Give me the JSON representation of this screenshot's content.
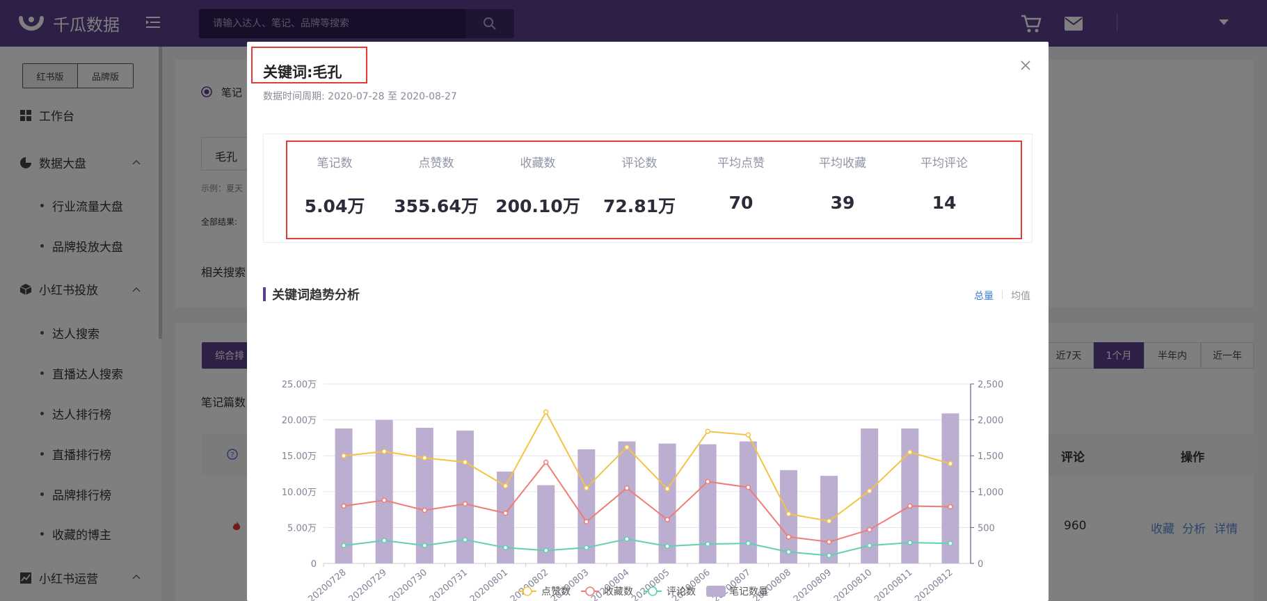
{
  "app": {
    "name": "千瓜数据",
    "search_placeholder": "请输入达人、笔记、品牌等搜索"
  },
  "sidebar": {
    "versions": [
      "红书版",
      "品牌版"
    ],
    "items": [
      {
        "label": "工作台"
      },
      {
        "label": "数据大盘"
      },
      {
        "label": "行业流量大盘"
      },
      {
        "label": "品牌投放大盘"
      },
      {
        "label": "小红书投放"
      },
      {
        "label": "达人搜索"
      },
      {
        "label": "直播达人搜索"
      },
      {
        "label": "达人排行榜"
      },
      {
        "label": "直播排行榜"
      },
      {
        "label": "品牌排行榜"
      },
      {
        "label": "收藏的博主"
      },
      {
        "label": "小红书运营"
      }
    ]
  },
  "background": {
    "radio_label": "笔记",
    "keyword": "毛孔",
    "example": "示例：夏天",
    "all_results": "全部结果:",
    "related": "相关搜索",
    "sort_btn": "综合排",
    "note_count": "笔记篇数",
    "ranges": [
      "近7天",
      "1个月",
      "半年内",
      "近一年"
    ],
    "col_comment": "评论",
    "col_action": "操作",
    "row_comment": "960",
    "actions": [
      "收藏",
      "分析",
      "详情"
    ]
  },
  "modal": {
    "title": "关键词:毛孔",
    "period": "数据时间周期: 2020-07-28 至 2020-08-27",
    "stats": [
      {
        "label": "笔记数",
        "value": "5.04万"
      },
      {
        "label": "点赞数",
        "value": "355.64万"
      },
      {
        "label": "收藏数",
        "value": "200.10万"
      },
      {
        "label": "评论数",
        "value": "72.81万"
      },
      {
        "label": "平均点赞",
        "value": "70"
      },
      {
        "label": "平均收藏",
        "value": "39"
      },
      {
        "label": "平均评论",
        "value": "14"
      }
    ],
    "section_title": "关键词趋势分析",
    "toggle_total": "总量",
    "toggle_avg": "均值"
  },
  "chart_data": {
    "type": "bar",
    "categories": [
      "20200728",
      "20200729",
      "20200730",
      "20200731",
      "20200801",
      "20200802",
      "20200803",
      "20200804",
      "20200805",
      "20200806",
      "20200807",
      "20200808",
      "20200809",
      "20200810",
      "20200811",
      "20200812"
    ],
    "left_axis": {
      "ticks": [
        "0",
        "5.00万",
        "10.00万",
        "15.00万",
        "20.00万",
        "25.00万"
      ],
      "max": 250000
    },
    "right_axis": {
      "ticks": [
        "0",
        "500",
        "1,000",
        "1,500",
        "2,000",
        "2,500"
      ],
      "max": 2500
    },
    "series": [
      {
        "name": "点赞数",
        "type": "line",
        "axis": "left",
        "color": "#f5c242",
        "values": [
          150000,
          156000,
          147000,
          141000,
          108000,
          211000,
          105000,
          162000,
          104000,
          184000,
          179000,
          69000,
          59000,
          101000,
          155000,
          139000
        ]
      },
      {
        "name": "收藏数",
        "type": "line",
        "axis": "left",
        "color": "#f07c75",
        "values": [
          80000,
          88000,
          74000,
          83000,
          70000,
          141000,
          58000,
          105000,
          61000,
          114000,
          106000,
          37000,
          30000,
          47000,
          80000,
          79000
        ]
      },
      {
        "name": "评论数",
        "type": "line",
        "axis": "left",
        "color": "#5fd1b0",
        "values": [
          25000,
          32000,
          25000,
          33000,
          22000,
          18000,
          22000,
          34000,
          24000,
          27000,
          28000,
          16000,
          11000,
          25000,
          29000,
          28000
        ]
      },
      {
        "name": "笔记数量",
        "type": "bar",
        "axis": "right",
        "color": "#bcaed0",
        "values": [
          1880,
          2000,
          1890,
          1850,
          1280,
          1090,
          1590,
          1700,
          1670,
          1660,
          1700,
          1300,
          1220,
          1880,
          1880,
          2090
        ]
      }
    ]
  }
}
